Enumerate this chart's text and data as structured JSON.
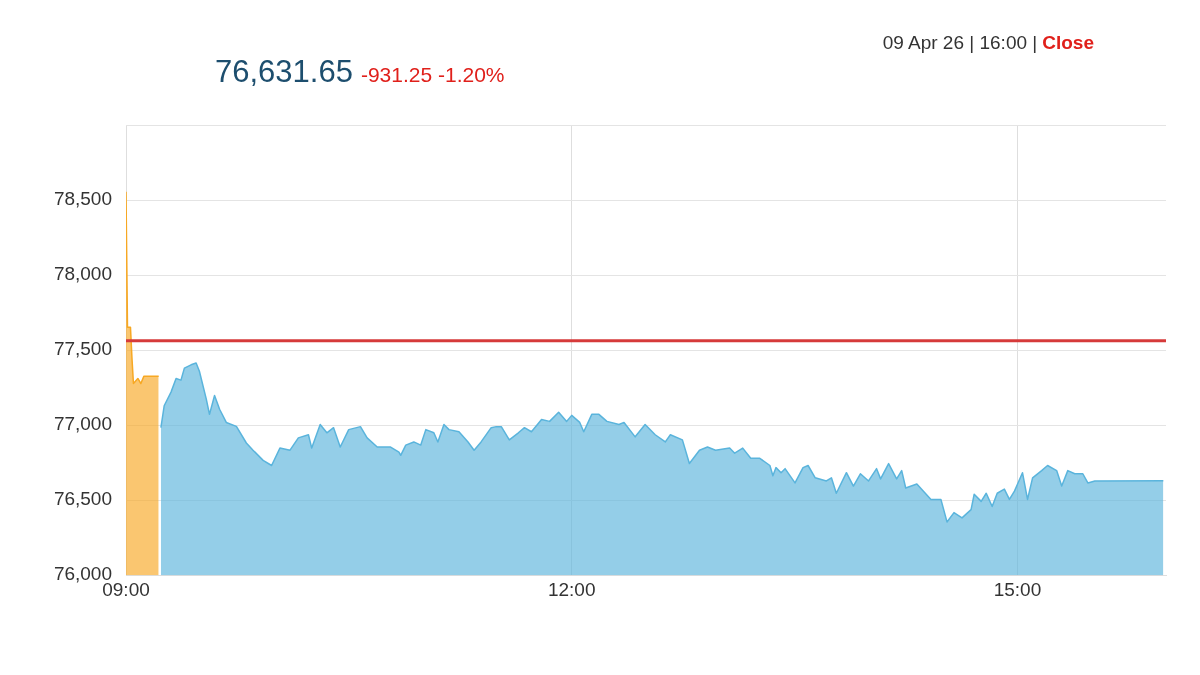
{
  "chart_data": {
    "type": "area",
    "title": "76,631.65",
    "subtitle": "-931.25 -1.20%",
    "annotations": [
      "09 Apr 26 | 16:00 |",
      "Close"
    ],
    "xlim": [
      9,
      16
    ],
    "xticks": [
      {
        "value": 9,
        "label": "09:00"
      },
      {
        "value": 12,
        "label": "12:00"
      },
      {
        "value": 15,
        "label": "15:00"
      }
    ],
    "ylim": [
      76000,
      79000
    ],
    "yticks": [
      {
        "value": 76000,
        "label": "76,000"
      },
      {
        "value": 76500,
        "label": "76,500"
      },
      {
        "value": 77000,
        "label": "77,000"
      },
      {
        "value": 77500,
        "label": "77,500"
      },
      {
        "value": 78000,
        "label": "78,000"
      },
      {
        "value": 78500,
        "label": "78,500"
      },
      {
        "value": 79000,
        "label": null
      }
    ],
    "grid": true,
    "legend": false,
    "marker": "none",
    "line_style": "solid",
    "ref_lines": [
      {
        "axis": "y",
        "value": 77562.9,
        "color": "#d63a3a"
      }
    ],
    "series": [
      {
        "color": "#f7a823",
        "x": [
          9.0,
          9.01,
          9.03,
          9.04,
          9.05,
          9.08,
          9.1,
          9.12,
          9.22
        ],
        "values": [
          78555,
          77653,
          77653,
          77448,
          77277,
          77311,
          77277,
          77325,
          77325
        ]
      },
      {
        "color": "#5ab4dc",
        "x": [
          9.235,
          9.257,
          9.303,
          9.337,
          9.37,
          9.393,
          9.438,
          9.472,
          9.494,
          9.54,
          9.562,
          9.596,
          9.63,
          9.675,
          9.743,
          9.81,
          9.855,
          9.923,
          9.98,
          10.036,
          10.104,
          10.16,
          10.228,
          10.25,
          10.307,
          10.352,
          10.397,
          10.442,
          10.499,
          10.578,
          10.623,
          10.691,
          10.781,
          10.837,
          10.849,
          10.883,
          10.937,
          10.984,
          11.018,
          11.072,
          11.099,
          11.14,
          11.174,
          11.241,
          11.302,
          11.343,
          11.39,
          11.458,
          11.492,
          11.526,
          11.58,
          11.641,
          11.682,
          11.729,
          11.797,
          11.851,
          11.912,
          11.966,
          12.0,
          12.054,
          12.081,
          12.135,
          12.183,
          12.237,
          12.318,
          12.352,
          12.427,
          12.494,
          12.562,
          12.63,
          12.664,
          12.745,
          12.792,
          12.86,
          12.914,
          12.968,
          13.063,
          13.097,
          13.151,
          13.205,
          13.266,
          13.334,
          13.354,
          13.375,
          13.409,
          13.436,
          13.503,
          13.557,
          13.591,
          13.639,
          13.714,
          13.748,
          13.781,
          13.849,
          13.896,
          13.943,
          13.998,
          14.052,
          14.079,
          14.133,
          14.187,
          14.221,
          14.248,
          14.323,
          14.418,
          14.485,
          14.526,
          14.573,
          14.627,
          14.688,
          14.709,
          14.756,
          14.79,
          14.83,
          14.864,
          14.912,
          14.946,
          14.98,
          15.034,
          15.068,
          15.102,
          15.163,
          15.203,
          15.264,
          15.298,
          15.339,
          15.386,
          15.44,
          15.474,
          15.521,
          15.982
        ],
        "values": [
          76983,
          77129,
          77220,
          77311,
          77300,
          77380,
          77402,
          77414,
          77359,
          77175,
          77072,
          77197,
          77106,
          77018,
          76992,
          76881,
          76833,
          76765,
          76731,
          76847,
          76833,
          76915,
          76936,
          76847,
          77004,
          76949,
          76983,
          76854,
          76970,
          76990,
          76915,
          76854,
          76854,
          76820,
          76799,
          76867,
          76888,
          76867,
          76970,
          76949,
          76888,
          77004,
          76970,
          76956,
          76888,
          76833,
          76888,
          76983,
          76990,
          76990,
          76902,
          76949,
          76983,
          76956,
          77038,
          77025,
          77086,
          77025,
          77065,
          77018,
          76956,
          77072,
          77072,
          77025,
          77004,
          77018,
          76922,
          77004,
          76936,
          76888,
          76936,
          76902,
          76744,
          76833,
          76854,
          76833,
          76847,
          76813,
          76847,
          76779,
          76779,
          76731,
          76663,
          76717,
          76683,
          76710,
          76615,
          76717,
          76731,
          76649,
          76628,
          76649,
          76546,
          76683,
          76594,
          76676,
          76628,
          76710,
          76642,
          76744,
          76642,
          76697,
          76581,
          76608,
          76505,
          76505,
          76355,
          76417,
          76382,
          76437,
          76540,
          76492,
          76546,
          76458,
          76546,
          76574,
          76505,
          76560,
          76683,
          76505,
          76649,
          76697,
          76731,
          76697,
          76594,
          76697,
          76676,
          76676,
          76615,
          76628,
          76630
        ]
      }
    ]
  }
}
